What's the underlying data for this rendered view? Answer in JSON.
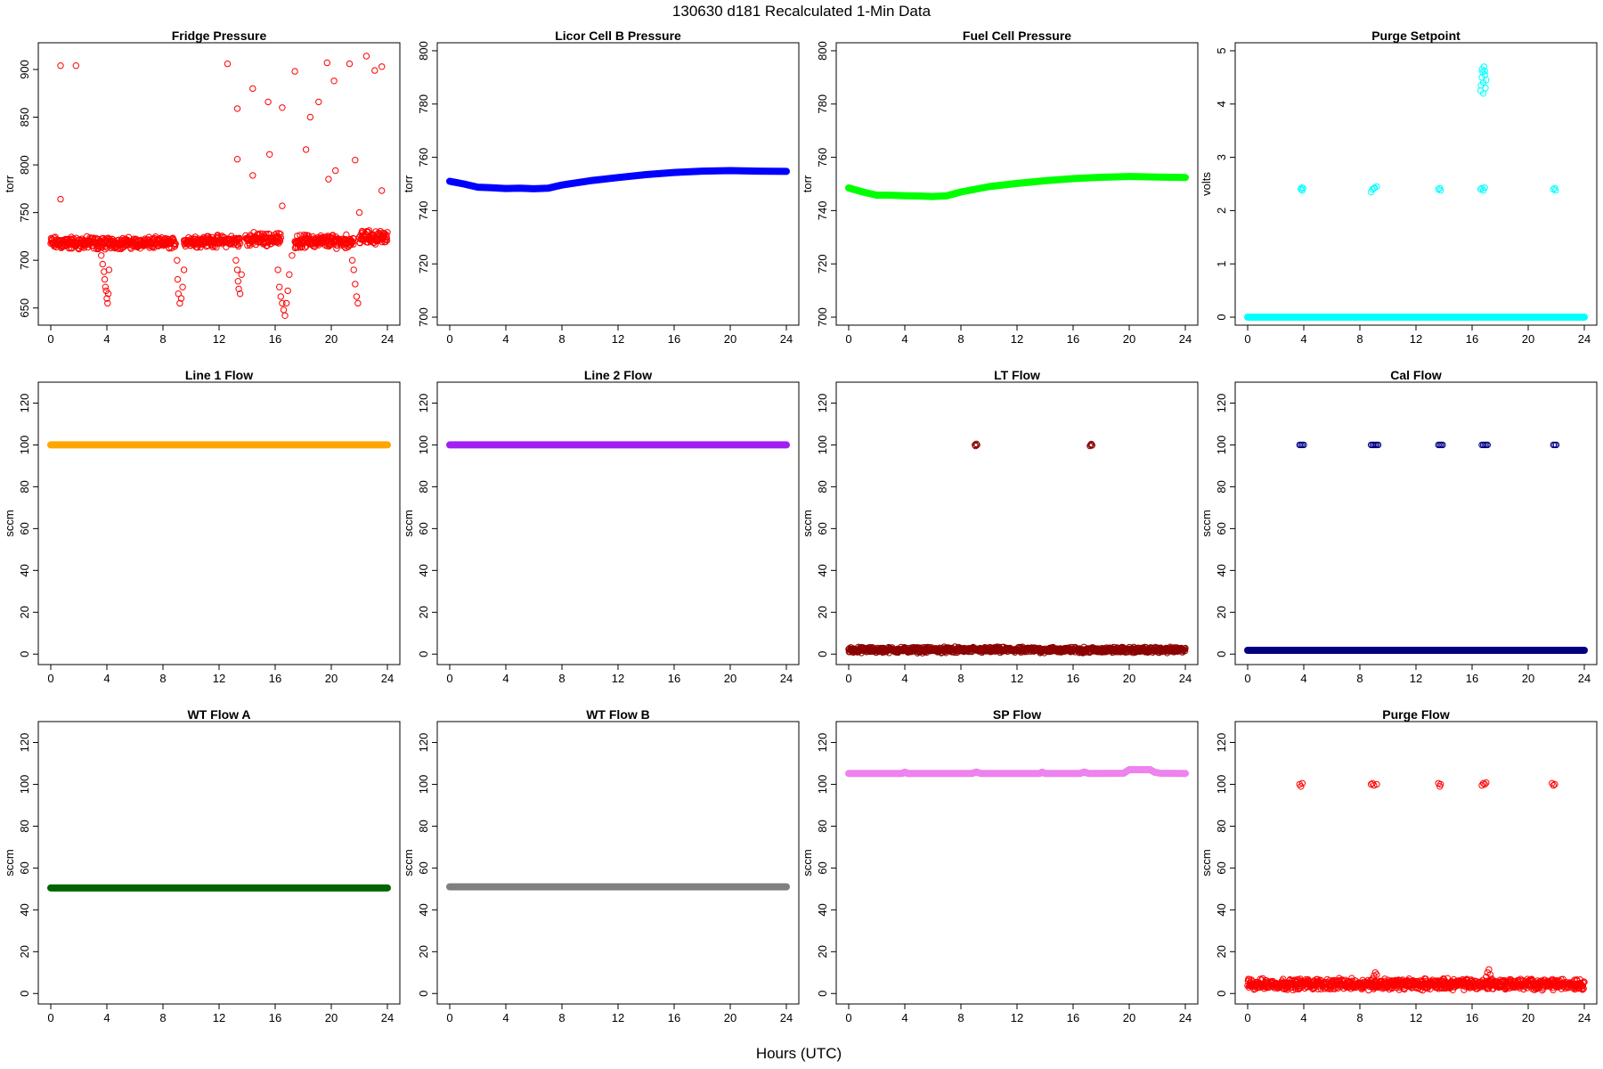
{
  "figure": {
    "title": "130630   d181   Recalculated 1-Min Data",
    "xlabel": "Hours (UTC)"
  },
  "chart_data": [
    {
      "type": "scatter",
      "title": "Fridge Pressure",
      "ylabel": "torr",
      "color": "#ff0000",
      "xlim": [
        0,
        24
      ],
      "ylim": [
        632,
        928
      ],
      "xticks": [
        0,
        4,
        8,
        12,
        16,
        20,
        24
      ],
      "yticks": [
        650,
        700,
        750,
        800,
        850,
        900
      ],
      "series": [
        {
          "kind": "band",
          "x": [
            0,
            3.9
          ],
          "y": 718,
          "spread": 8
        },
        {
          "kind": "band",
          "x": [
            4.0,
            8.9
          ],
          "y": 718,
          "spread": 7
        },
        {
          "kind": "band",
          "x": [
            9.5,
            13.5
          ],
          "y": 720,
          "spread": 7
        },
        {
          "kind": "band",
          "x": [
            13.9,
            16.4
          ],
          "y": 722,
          "spread": 8
        },
        {
          "kind": "band",
          "x": [
            17.4,
            21.6
          ],
          "y": 720,
          "spread": 8
        },
        {
          "kind": "band",
          "x": [
            22.0,
            24
          ],
          "y": 724,
          "spread": 8
        },
        {
          "kind": "points",
          "x": [
            3.6,
            3.7,
            3.8,
            3.85,
            3.9,
            3.95,
            4.0,
            4.05,
            4.1,
            4.15,
            9.0,
            9.05,
            9.1,
            9.2,
            9.3,
            9.4,
            9.5,
            13.2,
            13.3,
            13.35,
            13.4,
            13.5,
            13.6,
            16.2,
            16.3,
            16.4,
            16.5,
            16.6,
            16.7,
            16.8,
            16.9,
            17.0,
            17.2,
            21.5,
            21.6,
            21.7,
            21.8,
            21.9
          ],
          "y": [
            705,
            696,
            688,
            680,
            672,
            668,
            660,
            655,
            665,
            690,
            700,
            680,
            665,
            655,
            660,
            672,
            690,
            700,
            690,
            678,
            670,
            665,
            685,
            690,
            672,
            662,
            655,
            648,
            642,
            655,
            668,
            685,
            705,
            700,
            690,
            675,
            662,
            655
          ]
        },
        {
          "kind": "points",
          "x": [
            0.7,
            0.7,
            1.8,
            12.6,
            13.3,
            13.3,
            14.4,
            14.4,
            15.5,
            15.6,
            16.5,
            16.5,
            17.4,
            18.2,
            18.5,
            19.1,
            19.7,
            19.8,
            20.2,
            20.3,
            21.3,
            21.7,
            22.0,
            22.5,
            23.1,
            23.6,
            23.6
          ],
          "y": [
            904,
            764,
            904,
            906,
            859,
            806,
            880,
            789,
            866,
            811,
            860,
            757,
            898,
            816,
            850,
            866,
            907,
            785,
            888,
            794,
            906,
            805,
            750,
            914,
            899,
            903,
            773
          ]
        }
      ]
    },
    {
      "type": "scatter",
      "title": "Licor Cell B Pressure",
      "ylabel": "torr",
      "color": "#0000ff",
      "xlim": [
        0,
        24
      ],
      "ylim": [
        697,
        803
      ],
      "xticks": [
        0,
        4,
        8,
        12,
        16,
        20,
        24
      ],
      "yticks": [
        700,
        720,
        740,
        760,
        780,
        800
      ],
      "series": [
        {
          "kind": "line",
          "x": [
            0,
            1,
            2,
            3,
            4,
            5,
            6,
            7,
            8,
            10,
            12,
            14,
            16,
            18,
            20,
            22,
            24
          ],
          "y": [
            751,
            750,
            748.8,
            748.6,
            748.3,
            748.4,
            748.2,
            748.4,
            749.6,
            751.2,
            752.4,
            753.5,
            754.3,
            754.8,
            755,
            754.8,
            754.7
          ]
        }
      ]
    },
    {
      "type": "scatter",
      "title": "Fuel Cell Pressure",
      "ylabel": "torr",
      "color": "#00ff00",
      "xlim": [
        0,
        24
      ],
      "ylim": [
        697,
        803
      ],
      "xticks": [
        0,
        4,
        8,
        12,
        16,
        20,
        24
      ],
      "yticks": [
        700,
        720,
        740,
        760,
        780,
        800
      ],
      "series": [
        {
          "kind": "line",
          "x": [
            0,
            1,
            2,
            3,
            4,
            5,
            6,
            7,
            8,
            10,
            12,
            14,
            16,
            18,
            20,
            22,
            24
          ],
          "y": [
            748.5,
            747,
            745.8,
            745.8,
            745.6,
            745.5,
            745.3,
            745.6,
            747,
            749,
            750.2,
            751.2,
            752,
            752.5,
            752.8,
            752.6,
            752.4
          ]
        }
      ]
    },
    {
      "type": "scatter",
      "title": "Purge Setpoint",
      "ylabel": "volts",
      "color": "#00ffff",
      "xlim": [
        0,
        24
      ],
      "ylim": [
        -0.15,
        5.15
      ],
      "xticks": [
        0,
        4,
        8,
        12,
        16,
        20,
        24
      ],
      "yticks": [
        0,
        1,
        2,
        3,
        4,
        5
      ],
      "series": [
        {
          "kind": "line",
          "x": [
            0,
            24
          ],
          "y": [
            0,
            0
          ]
        },
        {
          "kind": "points",
          "x": [
            3.8,
            3.85,
            3.9,
            3.95,
            8.8,
            8.9,
            9.0,
            9.05,
            9.2,
            13.6,
            13.7,
            13.75,
            16.6,
            16.7,
            16.8,
            16.9,
            21.8,
            21.9,
            21.95
          ],
          "y": [
            2.4,
            2.43,
            2.38,
            2.42,
            2.35,
            2.4,
            2.42,
            2.43,
            2.45,
            2.4,
            2.42,
            2.38,
            2.4,
            2.42,
            2.38,
            2.43,
            2.4,
            2.42,
            2.38
          ]
        },
        {
          "kind": "points",
          "x": [
            16.6,
            16.65,
            16.7,
            16.75,
            16.8,
            16.85,
            16.9,
            16.95,
            17.0,
            16.7,
            16.8,
            16.9
          ],
          "y": [
            4.25,
            4.35,
            4.5,
            4.6,
            4.4,
            4.7,
            4.55,
            4.3,
            4.45,
            4.65,
            4.2,
            4.62
          ]
        }
      ]
    },
    {
      "type": "scatter",
      "title": "Line 1 Flow",
      "ylabel": "sccm",
      "color": "#ffa500",
      "xlim": [
        0,
        24
      ],
      "ylim": [
        -5,
        130
      ],
      "xticks": [
        0,
        4,
        8,
        12,
        16,
        20,
        24
      ],
      "yticks": [
        0,
        20,
        40,
        60,
        80,
        100,
        120
      ],
      "series": [
        {
          "kind": "line",
          "x": [
            0,
            24
          ],
          "y": [
            100,
            100
          ]
        }
      ]
    },
    {
      "type": "scatter",
      "title": "Line 2 Flow",
      "ylabel": "sccm",
      "color": "#a020f0",
      "xlim": [
        0,
        24
      ],
      "ylim": [
        -5,
        130
      ],
      "xticks": [
        0,
        4,
        8,
        12,
        16,
        20,
        24
      ],
      "yticks": [
        0,
        20,
        40,
        60,
        80,
        100,
        120
      ],
      "series": [
        {
          "kind": "line",
          "x": [
            0,
            24
          ],
          "y": [
            100,
            100
          ]
        }
      ]
    },
    {
      "type": "scatter",
      "title": "LT Flow",
      "ylabel": "sccm",
      "color": "#8b0000",
      "xlim": [
        0,
        24
      ],
      "ylim": [
        -5,
        130
      ],
      "xticks": [
        0,
        4,
        8,
        12,
        16,
        20,
        24
      ],
      "yticks": [
        0,
        20,
        40,
        60,
        80,
        100,
        120
      ],
      "series": [
        {
          "kind": "band",
          "x": [
            0,
            24
          ],
          "y": 2,
          "spread": 1.6
        },
        {
          "kind": "points",
          "x": [
            9.0,
            9.05,
            9.1,
            9.15,
            17.2,
            17.25,
            17.3,
            17.35
          ],
          "y": [
            100,
            99.5,
            100.5,
            100,
            99.5,
            100,
            100.4,
            99.8
          ]
        }
      ]
    },
    {
      "type": "scatter",
      "title": "Cal Flow",
      "ylabel": "sccm",
      "color": "#000080",
      "xlim": [
        0,
        24
      ],
      "ylim": [
        -5,
        130
      ],
      "xticks": [
        0,
        4,
        8,
        12,
        16,
        20,
        24
      ],
      "yticks": [
        0,
        20,
        40,
        60,
        80,
        100,
        120
      ],
      "series": [
        {
          "kind": "line",
          "x": [
            0,
            24
          ],
          "y": [
            1.8,
            1.8
          ]
        },
        {
          "kind": "points",
          "x": [
            3.7,
            3.8,
            3.9,
            4.0,
            8.8,
            8.9,
            9.0,
            9.1,
            9.2,
            9.3,
            13.6,
            13.7,
            13.8,
            13.9,
            16.7,
            16.8,
            16.9,
            17.0,
            17.1,
            21.8,
            21.9,
            22.0
          ],
          "y": [
            100,
            100,
            100,
            100,
            100,
            100,
            100,
            100,
            100,
            100,
            100,
            100,
            100,
            100,
            100,
            100,
            100,
            100,
            100,
            100,
            100,
            100
          ]
        }
      ]
    },
    {
      "type": "scatter",
      "title": "WT Flow A",
      "ylabel": "sccm",
      "color": "#006400",
      "xlim": [
        0,
        24
      ],
      "ylim": [
        -5,
        130
      ],
      "xticks": [
        0,
        4,
        8,
        12,
        16,
        20,
        24
      ],
      "yticks": [
        0,
        20,
        40,
        60,
        80,
        100,
        120
      ],
      "series": [
        {
          "kind": "line",
          "x": [
            0,
            24
          ],
          "y": [
            50.5,
            50.5
          ]
        }
      ]
    },
    {
      "type": "scatter",
      "title": "WT Flow B",
      "ylabel": "sccm",
      "color": "#808080",
      "xlim": [
        0,
        24
      ],
      "ylim": [
        -5,
        130
      ],
      "xticks": [
        0,
        4,
        8,
        12,
        16,
        20,
        24
      ],
      "yticks": [
        0,
        20,
        40,
        60,
        80,
        100,
        120
      ],
      "series": [
        {
          "kind": "line",
          "x": [
            0,
            24
          ],
          "y": [
            51,
            51
          ]
        }
      ]
    },
    {
      "type": "scatter",
      "title": "SP Flow",
      "ylabel": "sccm",
      "color": "#ee82ee",
      "xlim": [
        0,
        24
      ],
      "ylim": [
        -5,
        130
      ],
      "xticks": [
        0,
        4,
        8,
        12,
        16,
        20,
        24
      ],
      "yticks": [
        0,
        20,
        40,
        60,
        80,
        100,
        120
      ],
      "series": [
        {
          "kind": "line",
          "x": [
            0,
            3.8,
            4.0,
            4.2,
            8.8,
            9.1,
            9.4,
            13.6,
            13.8,
            14.0,
            16.5,
            16.8,
            17.1,
            19.6,
            20.0,
            21.5,
            21.8,
            22.2,
            24
          ],
          "y": [
            105.2,
            105.2,
            105.8,
            105.2,
            105.2,
            105.9,
            105.2,
            105.2,
            105.8,
            105.2,
            105.2,
            105.9,
            105.2,
            105.3,
            107,
            107,
            105.8,
            105.3,
            105.2
          ]
        }
      ]
    },
    {
      "type": "scatter",
      "title": "Purge Flow",
      "ylabel": "sccm",
      "color": "#ff0000",
      "xlim": [
        0,
        24
      ],
      "ylim": [
        -5,
        130
      ],
      "xticks": [
        0,
        4,
        8,
        12,
        16,
        20,
        24
      ],
      "yticks": [
        0,
        20,
        40,
        60,
        80,
        100,
        120
      ],
      "series": [
        {
          "kind": "band",
          "x": [
            0,
            24
          ],
          "y": 4.5,
          "spread": 3
        },
        {
          "kind": "points",
          "x": [
            8.9,
            9.0,
            9.1,
            9.2,
            17.0,
            17.1,
            17.2,
            17.3,
            17.4
          ],
          "y": [
            7,
            8.5,
            10,
            9,
            8,
            10,
            11.5,
            9,
            7
          ]
        },
        {
          "kind": "points",
          "x": [
            3.7,
            3.8,
            3.9,
            8.8,
            8.9,
            9.0,
            9.2,
            13.6,
            13.7,
            13.75,
            16.7,
            16.8,
            16.9,
            17.0,
            21.7,
            21.8,
            21.9
          ],
          "y": [
            100,
            99,
            100.5,
            100,
            100.5,
            99.5,
            100,
            100.5,
            99,
            100,
            99.5,
            100.5,
            100,
            100.8,
            100.5,
            99.5,
            100
          ]
        }
      ]
    }
  ]
}
